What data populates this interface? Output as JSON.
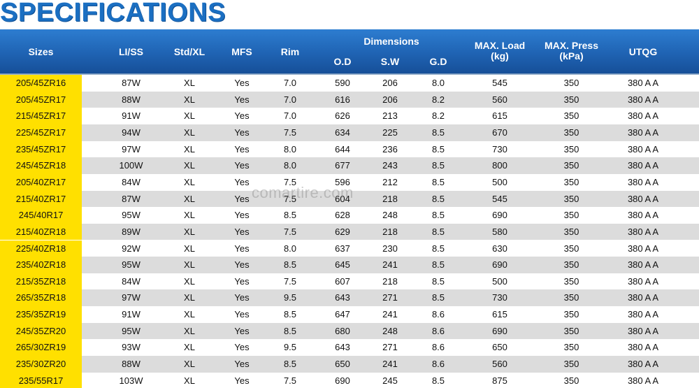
{
  "title": "SPECIFICATIONS",
  "watermark": "comartire.com",
  "headers": {
    "sizes": "Sizes",
    "li_ss": "LI/SS",
    "std_xl": "Std/XL",
    "mfs": "MFS",
    "rim": "Rim",
    "dimensions": "Dimensions",
    "od": "O.D",
    "sw": "S.W",
    "gd": "G.D",
    "max_load": "MAX. Load",
    "max_load_unit": "(kg)",
    "max_press": "MAX. Press",
    "max_press_unit": "(kPa)",
    "utqg": "UTQG"
  },
  "rows": [
    [
      "205/45ZR16",
      "87W",
      "XL",
      "Yes",
      "7.0",
      "590",
      "206",
      "8.0",
      "545",
      "350",
      "380 A A"
    ],
    [
      "205/45ZR17",
      "88W",
      "XL",
      "Yes",
      "7.0",
      "616",
      "206",
      "8.2",
      "560",
      "350",
      "380 A A"
    ],
    [
      "215/45ZR17",
      "91W",
      "XL",
      "Yes",
      "7.0",
      "626",
      "213",
      "8.2",
      "615",
      "350",
      "380 A A"
    ],
    [
      "225/45ZR17",
      "94W",
      "XL",
      "Yes",
      "7.5",
      "634",
      "225",
      "8.5",
      "670",
      "350",
      "380 A A"
    ],
    [
      "235/45ZR17",
      "97W",
      "XL",
      "Yes",
      "8.0",
      "644",
      "236",
      "8.5",
      "730",
      "350",
      "380 A A"
    ],
    [
      "245/45ZR18",
      "100W",
      "XL",
      "Yes",
      "8.0",
      "677",
      "243",
      "8.5",
      "800",
      "350",
      "380 A A"
    ],
    [
      "205/40ZR17",
      "84W",
      "XL",
      "Yes",
      "7.5",
      "596",
      "212",
      "8.5",
      "500",
      "350",
      "380 A A"
    ],
    [
      "215/40ZR17",
      "87W",
      "XL",
      "Yes",
      "7.5",
      "604",
      "218",
      "8.5",
      "545",
      "350",
      "380 A A"
    ],
    [
      "245/40R17",
      "95W",
      "XL",
      "Yes",
      "8.5",
      "628",
      "248",
      "8.5",
      "690",
      "350",
      "380 A A"
    ],
    [
      "215/40ZR18",
      "89W",
      "XL",
      "Yes",
      "7.5",
      "629",
      "218",
      "8.5",
      "580",
      "350",
      "380 A A"
    ],
    [
      "225/40ZR18",
      "92W",
      "XL",
      "Yes",
      "8.0",
      "637",
      "230",
      "8.5",
      "630",
      "350",
      "380 A A"
    ],
    [
      "235/40ZR18",
      "95W",
      "XL",
      "Yes",
      "8.5",
      "645",
      "241",
      "8.5",
      "690",
      "350",
      "380 A A"
    ],
    [
      "215/35ZR18",
      "84W",
      "XL",
      "Yes",
      "7.5",
      "607",
      "218",
      "8.5",
      "500",
      "350",
      "380 A A"
    ],
    [
      "265/35ZR18",
      "97W",
      "XL",
      "Yes",
      "9.5",
      "643",
      "271",
      "8.5",
      "730",
      "350",
      "380 A A"
    ],
    [
      "235/35ZR19",
      "91W",
      "XL",
      "Yes",
      "8.5",
      "647",
      "241",
      "8.6",
      "615",
      "350",
      "380 A A"
    ],
    [
      "245/35ZR20",
      "95W",
      "XL",
      "Yes",
      "8.5",
      "680",
      "248",
      "8.6",
      "690",
      "350",
      "380 A A"
    ],
    [
      "265/30ZR19",
      "93W",
      "XL",
      "Yes",
      "9.5",
      "643",
      "271",
      "8.6",
      "650",
      "350",
      "380 A A"
    ],
    [
      "235/30ZR20",
      "88W",
      "XL",
      "Yes",
      "8.5",
      "650",
      "241",
      "8.6",
      "560",
      "350",
      "380 A A"
    ],
    [
      "235/55R17",
      "103W",
      "XL",
      "Yes",
      "7.5",
      "690",
      "245",
      "8.5",
      "875",
      "350",
      "380 A A"
    ]
  ],
  "colors": {
    "title": "#1b6fc2",
    "header_bg": "#1f63b3",
    "size_col_bg": "#ffe000",
    "alt_row_bg": "#dcdcdc"
  }
}
